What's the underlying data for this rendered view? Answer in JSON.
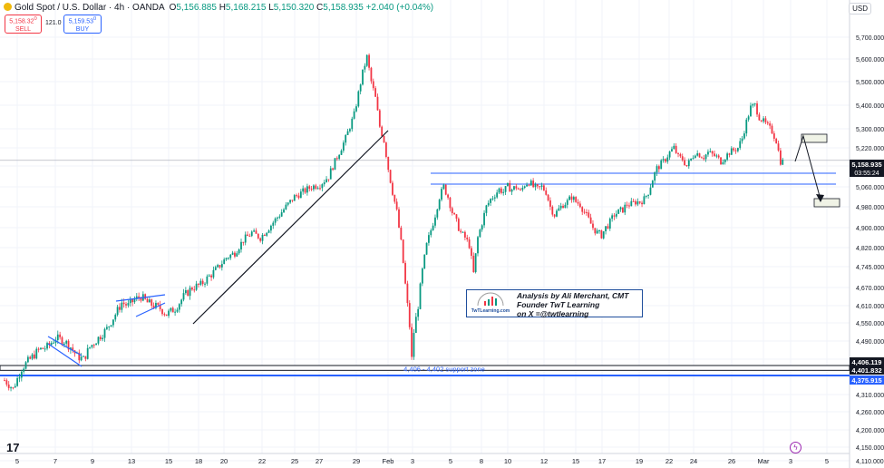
{
  "header": {
    "symbol": "Gold Spot / U.S. Dollar · 4h · OANDA",
    "open_label": "O",
    "open": "5,156.885",
    "high_label": "H",
    "high": "5,168.215",
    "low_label": "L",
    "low": "5,150.320",
    "close_label": "C",
    "close": "5,158.935",
    "change": "+2.040 (+0.04%)"
  },
  "trade": {
    "sell_price": "5,158.32",
    "sell_sup": "0",
    "sell_label": "SELL",
    "spread": "121.0",
    "buy_price": "5,159.53",
    "buy_sup": "0",
    "buy_label": "BUY"
  },
  "currency": "USD",
  "annotation": {
    "line1": "Analysis by Ali Merchant, CMT",
    "line2": "Founder TwT Learning",
    "line3": "on X =@twtlearning",
    "logo_text": "TwTLearning.com"
  },
  "support_label": "4,406 - 4,402 support zone",
  "price_badges": [
    {
      "value": "5,158.935",
      "sub": "03:55:24",
      "color": "#131722"
    },
    {
      "value": "4,406.119",
      "color": "#131722"
    },
    {
      "value": "4,401.832",
      "color": "#131722"
    },
    {
      "value": "4,375.915",
      "color": "#2962ff"
    }
  ],
  "colors": {
    "up": "#089981",
    "down": "#f23645",
    "zone": "#2962ff",
    "trend": "#131722"
  },
  "chart_data": {
    "type": "candlestick",
    "timeframe": "4h",
    "ylim": [
      4100,
      5820
    ],
    "y_ticks": [
      5700,
      5600,
      5500,
      5400,
      5300,
      5220,
      5140,
      5060,
      4980,
      4900,
      4820,
      4745,
      4670,
      4610,
      4550,
      4490,
      4430,
      4370,
      4310,
      4260,
      4200,
      4150,
      4110
    ],
    "y_tick_labels": [
      "5,700.000",
      "5,600.000",
      "5,500.000",
      "5,400.000",
      "5,300.000",
      "5,220.000",
      "5,140.000",
      "5,060.000",
      "4,980.000",
      "4,900.000",
      "4,820.000",
      "4,745.000",
      "4,670.000",
      "4,610.000",
      "4,550.000",
      "4,490.000",
      "4,430.000",
      "4,370.000",
      "4,310.000",
      "4,260.000",
      "4,200.000",
      "4,150.000",
      "4,110.000"
    ],
    "x_ticks": [
      "5",
      "7",
      "9",
      "13",
      "15",
      "18",
      "20",
      "22",
      "25",
      "27",
      "29",
      "Feb",
      "3",
      "5",
      "8",
      "10",
      "12",
      "15",
      "17",
      "19",
      "22",
      "24",
      "26",
      "Mar",
      "3",
      "5"
    ],
    "path": [
      [
        0,
        4360
      ],
      [
        4,
        4330
      ],
      [
        8,
        4400
      ],
      [
        12,
        4430
      ],
      [
        16,
        4460
      ],
      [
        20,
        4470
      ],
      [
        24,
        4500
      ],
      [
        28,
        4490
      ],
      [
        31,
        4470
      ],
      [
        34,
        4440
      ],
      [
        37,
        4430
      ],
      [
        40,
        4470
      ],
      [
        44,
        4500
      ],
      [
        48,
        4530
      ],
      [
        52,
        4580
      ],
      [
        55,
        4620
      ],
      [
        58,
        4610
      ],
      [
        61,
        4630
      ],
      [
        64,
        4640
      ],
      [
        67,
        4620
      ],
      [
        70,
        4610
      ],
      [
        73,
        4600
      ],
      [
        76,
        4580
      ],
      [
        80,
        4600
      ],
      [
        84,
        4640
      ],
      [
        88,
        4670
      ],
      [
        92,
        4680
      ],
      [
        96,
        4710
      ],
      [
        100,
        4740
      ],
      [
        104,
        4780
      ],
      [
        108,
        4800
      ],
      [
        112,
        4850
      ],
      [
        116,
        4880
      ],
      [
        120,
        4860
      ],
      [
        124,
        4900
      ],
      [
        128,
        4940
      ],
      [
        132,
        4980
      ],
      [
        136,
        5020
      ],
      [
        140,
        5040
      ],
      [
        144,
        5060
      ],
      [
        148,
        5070
      ],
      [
        152,
        5100
      ],
      [
        156,
        5180
      ],
      [
        160,
        5260
      ],
      [
        164,
        5360
      ],
      [
        168,
        5540
      ],
      [
        170,
        5610
      ],
      [
        172,
        5500
      ],
      [
        174,
        5430
      ],
      [
        176,
        5310
      ],
      [
        178,
        5250
      ],
      [
        180,
        5130
      ],
      [
        182,
        5040
      ],
      [
        184,
        4960
      ],
      [
        186,
        4840
      ],
      [
        188,
        4680
      ],
      [
        190,
        4540
      ],
      [
        191,
        4430
      ],
      [
        192,
        4520
      ],
      [
        194,
        4610
      ],
      [
        196,
        4730
      ],
      [
        198,
        4830
      ],
      [
        200,
        4890
      ],
      [
        202,
        4950
      ],
      [
        204,
        5020
      ],
      [
        206,
        5060
      ],
      [
        208,
        5020
      ],
      [
        210,
        4960
      ],
      [
        212,
        4920
      ],
      [
        214,
        4880
      ],
      [
        216,
        4860
      ],
      [
        218,
        4830
      ],
      [
        220,
        4720
      ],
      [
        222,
        4860
      ],
      [
        224,
        4920
      ],
      [
        226,
        4980
      ],
      [
        228,
        5010
      ],
      [
        230,
        5030
      ],
      [
        232,
        5050
      ],
      [
        234,
        5040
      ],
      [
        236,
        5060
      ],
      [
        238,
        5050
      ],
      [
        240,
        5060
      ],
      [
        242,
        5040
      ],
      [
        244,
        5070
      ],
      [
        246,
        5080
      ],
      [
        248,
        5060
      ],
      [
        250,
        5050
      ],
      [
        252,
        5060
      ],
      [
        254,
        5040
      ],
      [
        256,
        4980
      ],
      [
        258,
        4950
      ],
      [
        260,
        4970
      ],
      [
        262,
        4990
      ],
      [
        264,
        5000
      ],
      [
        266,
        5020
      ],
      [
        268,
        5000
      ],
      [
        270,
        4990
      ],
      [
        272,
        4960
      ],
      [
        274,
        4930
      ],
      [
        276,
        4900
      ],
      [
        278,
        4880
      ],
      [
        280,
        4870
      ],
      [
        282,
        4900
      ],
      [
        284,
        4920
      ],
      [
        286,
        4950
      ],
      [
        288,
        4960
      ],
      [
        290,
        4970
      ],
      [
        292,
        4990
      ],
      [
        294,
        4990
      ],
      [
        296,
        5000
      ],
      [
        298,
        5000
      ],
      [
        300,
        5010
      ],
      [
        302,
        5040
      ],
      [
        304,
        5090
      ],
      [
        306,
        5130
      ],
      [
        308,
        5150
      ],
      [
        310,
        5170
      ],
      [
        312,
        5200
      ],
      [
        314,
        5220
      ],
      [
        316,
        5180
      ],
      [
        318,
        5170
      ],
      [
        320,
        5140
      ],
      [
        322,
        5170
      ],
      [
        324,
        5200
      ],
      [
        326,
        5190
      ],
      [
        328,
        5180
      ],
      [
        330,
        5200
      ],
      [
        332,
        5190
      ],
      [
        334,
        5180
      ],
      [
        336,
        5160
      ],
      [
        338,
        5180
      ],
      [
        340,
        5200
      ],
      [
        342,
        5210
      ],
      [
        344,
        5220
      ],
      [
        346,
        5260
      ],
      [
        348,
        5330
      ],
      [
        350,
        5390
      ],
      [
        352,
        5400
      ],
      [
        354,
        5350
      ],
      [
        356,
        5330
      ],
      [
        358,
        5310
      ],
      [
        360,
        5290
      ],
      [
        362,
        5250
      ],
      [
        364,
        5160
      ],
      [
        366,
        5160
      ]
    ],
    "zones": [
      {
        "name": "upper-resistance",
        "from": 5097,
        "to": 5075
      },
      {
        "name": "support-zone-top",
        "value": 4406
      },
      {
        "name": "support-zone-bottom",
        "value": 4402
      },
      {
        "name": "lower-support",
        "value": 4376
      }
    ]
  }
}
